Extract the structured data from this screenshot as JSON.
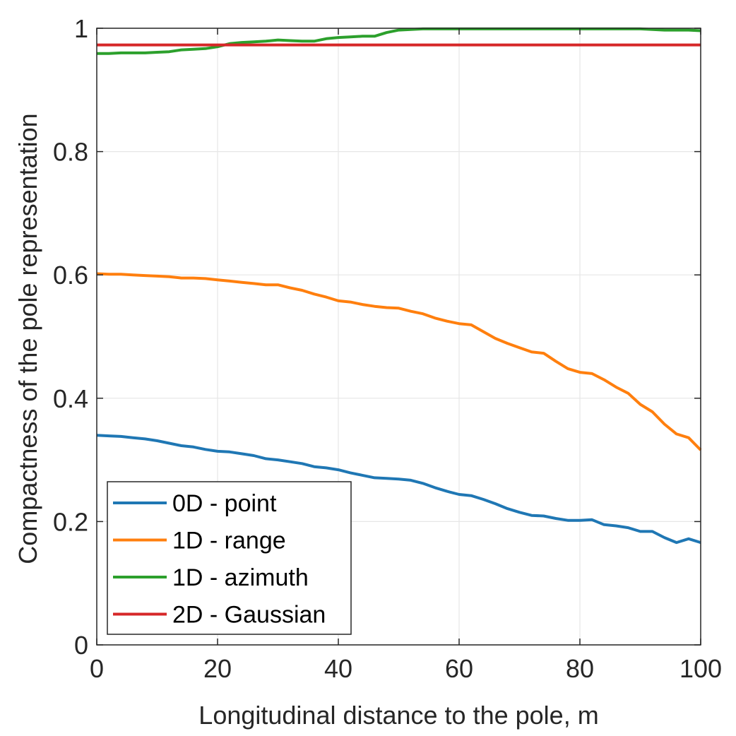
{
  "chart_data": {
    "type": "line",
    "xlabel": "Longitudinal distance to the pole, m",
    "ylabel": "Compactness of the pole representation",
    "xlim": [
      0,
      100
    ],
    "ylim": [
      0,
      1
    ],
    "xticks": [
      "0",
      "20",
      "40",
      "60",
      "80",
      "100"
    ],
    "yticks": [
      "0",
      "0.2",
      "0.4",
      "0.6",
      "0.8",
      "1"
    ],
    "grid": true,
    "legend_position": "bottom-left",
    "series": [
      {
        "name": "0D - point",
        "color": "#1f77b4",
        "x": [
          0,
          2,
          4,
          6,
          8,
          10,
          12,
          14,
          16,
          18,
          20,
          22,
          24,
          26,
          28,
          30,
          32,
          34,
          36,
          38,
          40,
          42,
          44,
          46,
          48,
          50,
          52,
          54,
          56,
          58,
          60,
          62,
          64,
          66,
          68,
          70,
          72,
          74,
          76,
          78,
          80,
          82,
          84,
          86,
          88,
          90,
          92,
          94,
          96,
          98,
          100
        ],
        "values": [
          0.34,
          0.339,
          0.338,
          0.336,
          0.334,
          0.331,
          0.327,
          0.323,
          0.321,
          0.317,
          0.314,
          0.313,
          0.31,
          0.307,
          0.302,
          0.3,
          0.297,
          0.294,
          0.289,
          0.287,
          0.284,
          0.279,
          0.275,
          0.271,
          0.27,
          0.269,
          0.267,
          0.262,
          0.255,
          0.249,
          0.244,
          0.242,
          0.236,
          0.229,
          0.221,
          0.215,
          0.21,
          0.209,
          0.205,
          0.202,
          0.202,
          0.203,
          0.195,
          0.193,
          0.19,
          0.184,
          0.184,
          0.174,
          0.166,
          0.172,
          0.166
        ]
      },
      {
        "name": "1D - range",
        "color": "#ff7f0e",
        "x": [
          0,
          2,
          4,
          6,
          8,
          10,
          12,
          14,
          16,
          18,
          20,
          22,
          24,
          26,
          28,
          30,
          32,
          34,
          36,
          38,
          40,
          42,
          44,
          46,
          48,
          50,
          52,
          54,
          56,
          58,
          60,
          62,
          64,
          66,
          68,
          70,
          72,
          74,
          76,
          78,
          80,
          82,
          84,
          86,
          88,
          90,
          92,
          94,
          96,
          98,
          100
        ],
        "values": [
          0.602,
          0.601,
          0.601,
          0.6,
          0.599,
          0.598,
          0.597,
          0.595,
          0.595,
          0.594,
          0.592,
          0.59,
          0.588,
          0.586,
          0.584,
          0.584,
          0.579,
          0.575,
          0.569,
          0.564,
          0.558,
          0.556,
          0.552,
          0.549,
          0.547,
          0.546,
          0.541,
          0.537,
          0.53,
          0.525,
          0.521,
          0.519,
          0.508,
          0.497,
          0.489,
          0.482,
          0.475,
          0.473,
          0.46,
          0.448,
          0.442,
          0.44,
          0.43,
          0.418,
          0.408,
          0.39,
          0.378,
          0.358,
          0.342,
          0.336,
          0.316
        ]
      },
      {
        "name": "1D - azimuth",
        "color": "#2ca02c",
        "x": [
          0,
          2,
          4,
          6,
          8,
          10,
          12,
          14,
          16,
          18,
          20,
          22,
          24,
          26,
          28,
          30,
          32,
          34,
          36,
          38,
          40,
          42,
          44,
          46,
          48,
          50,
          52,
          54,
          56,
          58,
          60,
          62,
          64,
          66,
          68,
          70,
          72,
          74,
          76,
          78,
          80,
          82,
          84,
          86,
          88,
          90,
          92,
          94,
          96,
          98,
          100
        ],
        "values": [
          0.959,
          0.959,
          0.96,
          0.96,
          0.96,
          0.961,
          0.962,
          0.965,
          0.966,
          0.967,
          0.97,
          0.975,
          0.977,
          0.978,
          0.979,
          0.981,
          0.98,
          0.979,
          0.979,
          0.983,
          0.985,
          0.986,
          0.987,
          0.987,
          0.993,
          0.997,
          0.998,
          0.999,
          0.999,
          0.999,
          0.999,
          0.999,
          0.999,
          0.999,
          0.999,
          0.999,
          0.999,
          0.999,
          0.999,
          0.999,
          0.999,
          0.999,
          0.999,
          0.999,
          0.999,
          0.999,
          0.998,
          0.997,
          0.997,
          0.997,
          0.996
        ]
      },
      {
        "name": "2D - Gaussian",
        "color": "#d62728",
        "x": [
          0,
          100
        ],
        "values": [
          0.973,
          0.973
        ]
      }
    ]
  }
}
